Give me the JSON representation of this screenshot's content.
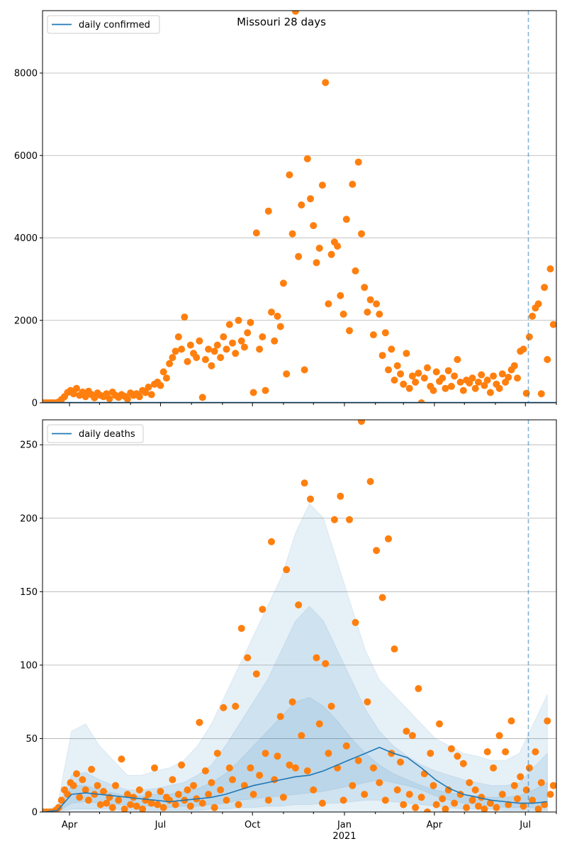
{
  "chart_data": [
    {
      "type": "scatter",
      "title": "Missouri 28 days",
      "legend": [
        "daily confirmed"
      ],
      "legend_placement": "top-left",
      "xlim": [
        "2020-03-05",
        "2021-08-01"
      ],
      "ylim": [
        0,
        9514
      ],
      "yticks": [
        0,
        2000,
        4000,
        6000,
        8000
      ],
      "grid": "y",
      "vline_date": "2021-07-04",
      "start_date": "2020-03-06",
      "step_days": 3,
      "line_values": [
        0,
        0
      ],
      "values": [
        0,
        0,
        0,
        0,
        0,
        20,
        80,
        150,
        250,
        300,
        220,
        350,
        180,
        260,
        150,
        280,
        200,
        120,
        240,
        180,
        150,
        220,
        100,
        260,
        180,
        130,
        200,
        160,
        90,
        240,
        180,
        220,
        150,
        300,
        250,
        380,
        200,
        450,
        500,
        420,
        750,
        600,
        950,
        1100,
        1250,
        1600,
        1300,
        2080,
        1000,
        1400,
        1200,
        1100,
        1500,
        130,
        1050,
        1300,
        900,
        1250,
        1400,
        1100,
        1600,
        1300,
        1900,
        1450,
        1200,
        2000,
        1500,
        1350,
        1700,
        1950,
        250,
        4120,
        1300,
        1600,
        300,
        4650,
        2200,
        1500,
        2100,
        1850,
        2900,
        700,
        5530,
        4100,
        9500,
        3550,
        4800,
        800,
        5920,
        4950,
        4300,
        3400,
        3750,
        5280,
        7770,
        2400,
        3600,
        3900,
        3800,
        2600,
        2150,
        4450,
        1750,
        5300,
        3200,
        5840,
        4100,
        2800,
        2200,
        2500,
        1650,
        2400,
        2150,
        1150,
        1700,
        800,
        1300,
        550,
        900,
        700,
        450,
        1200,
        350,
        650,
        500,
        720,
        0,
        600,
        850,
        400,
        300,
        750,
        520,
        600,
        350,
        780,
        400,
        650,
        1050,
        500,
        300,
        550,
        480,
        600,
        350,
        500,
        680,
        420,
        550,
        250,
        650,
        450,
        350,
        700,
        500,
        620,
        800,
        900,
        600,
        1250,
        1300,
        230,
        1600,
        2100,
        2300,
        2400,
        220,
        2800,
        1050,
        3250,
        1900
      ]
    },
    {
      "type": "scatter",
      "legend": [
        "daily deaths"
      ],
      "legend_placement": "top-left",
      "xlim": [
        "2020-03-05",
        "2021-08-01"
      ],
      "ylim": [
        0,
        267
      ],
      "yticks": [
        0,
        50,
        100,
        150,
        200,
        250
      ],
      "grid": "y",
      "vline_date": "2021-07-04",
      "xticks": [
        {
          "date": "2020-04-01",
          "label": "Apr"
        },
        {
          "date": "2020-07-01",
          "label": "Jul"
        },
        {
          "date": "2020-10-01",
          "label": "Oct"
        },
        {
          "date": "2021-01-01",
          "label": "Jan",
          "sublabel": "2021"
        },
        {
          "date": "2021-04-01",
          "label": "Apr"
        },
        {
          "date": "2021-07-01",
          "label": "Jul"
        }
      ],
      "start_date": "2020-03-06",
      "step_days": 3,
      "values": [
        0,
        0,
        0,
        0,
        1,
        3,
        8,
        15,
        12,
        20,
        18,
        26,
        10,
        22,
        15,
        8,
        29,
        12,
        18,
        5,
        14,
        6,
        10,
        3,
        18,
        8,
        36,
        2,
        12,
        5,
        10,
        4,
        15,
        2,
        8,
        12,
        6,
        30,
        5,
        14,
        3,
        10,
        8,
        22,
        5,
        12,
        32,
        8,
        15,
        4,
        18,
        9,
        61,
        6,
        28,
        12,
        20,
        3,
        40,
        15,
        71,
        8,
        30,
        22,
        72,
        5,
        125,
        18,
        105,
        30,
        12,
        94,
        25,
        138,
        40,
        8,
        184,
        22,
        38,
        65,
        10,
        165,
        32,
        75,
        30,
        141,
        52,
        224,
        28,
        213,
        15,
        105,
        60,
        6,
        101,
        40,
        72,
        199,
        30,
        215,
        8,
        45,
        199,
        18,
        129,
        35,
        266,
        12,
        75,
        225,
        30,
        178,
        20,
        146,
        8,
        186,
        40,
        111,
        15,
        34,
        5,
        55,
        12,
        52,
        3,
        84,
        10,
        26,
        0,
        40,
        18,
        5,
        60,
        9,
        2,
        15,
        43,
        6,
        38,
        12,
        33,
        3,
        20,
        8,
        15,
        4,
        10,
        2,
        41,
        6,
        30,
        3,
        52,
        12,
        41,
        5,
        62,
        18,
        9,
        24,
        4,
        15,
        30,
        8,
        41,
        2,
        20,
        5,
        62,
        12,
        18
      ],
      "smooth_step_days": 14,
      "smoothed": [
        0,
        1,
        12,
        13,
        12,
        11,
        10,
        9,
        8,
        7,
        8,
        9,
        10,
        12,
        15,
        18,
        20,
        22,
        24,
        25,
        28,
        32,
        36,
        40,
        44,
        40,
        37,
        30,
        22,
        16,
        12,
        10,
        8,
        7,
        6,
        6,
        7
      ],
      "bands": [
        {
          "name": "outer",
          "upper": [
            0,
            5,
            55,
            60,
            45,
            35,
            25,
            25,
            28,
            30,
            35,
            45,
            60,
            80,
            100,
            120,
            140,
            160,
            190,
            210,
            200,
            170,
            140,
            110,
            90,
            80,
            70,
            60,
            50,
            45,
            40,
            38,
            35,
            35,
            40,
            60,
            80
          ],
          "lower": [
            0,
            0,
            0,
            0,
            0,
            0,
            0,
            0,
            0,
            0,
            0,
            0,
            0,
            0,
            0,
            0,
            0,
            0,
            0,
            0,
            0,
            0,
            0,
            0,
            0,
            0,
            0,
            0,
            0,
            0,
            0,
            0,
            0,
            0,
            0,
            0,
            0
          ]
        },
        {
          "name": "middle",
          "upper": [
            0,
            3,
            25,
            27,
            22,
            18,
            15,
            15,
            16,
            18,
            20,
            25,
            32,
            45,
            60,
            75,
            90,
            110,
            130,
            140,
            130,
            110,
            90,
            70,
            55,
            45,
            38,
            32,
            28,
            25,
            22,
            20,
            18,
            18,
            20,
            30,
            40
          ],
          "lower": [
            0,
            0,
            2,
            2,
            2,
            2,
            1,
            1,
            1,
            1,
            1,
            1,
            2,
            2,
            3,
            3,
            4,
            4,
            5,
            5,
            6,
            6,
            7,
            8,
            8,
            7,
            6,
            5,
            4,
            3,
            2,
            2,
            2,
            1,
            1,
            1,
            1
          ]
        },
        {
          "name": "inner",
          "upper": [
            0,
            2,
            18,
            18,
            15,
            13,
            11,
            11,
            12,
            12,
            14,
            16,
            20,
            26,
            35,
            45,
            55,
            65,
            75,
            78,
            72,
            62,
            50,
            40,
            32,
            26,
            22,
            18,
            15,
            13,
            12,
            11,
            10,
            10,
            11,
            15,
            20
          ],
          "lower": [
            0,
            0,
            6,
            7,
            6,
            5,
            5,
            4,
            4,
            3,
            4,
            4,
            5,
            6,
            8,
            9,
            10,
            11,
            12,
            13,
            14,
            16,
            18,
            20,
            22,
            20,
            18,
            15,
            11,
            8,
            6,
            5,
            4,
            3,
            3,
            3,
            3
          ]
        }
      ]
    }
  ],
  "colors": {
    "dots": "#ff7f0e",
    "line": "#1f77b4",
    "band": "#1f77b4",
    "grid": "#b0b0b0"
  }
}
